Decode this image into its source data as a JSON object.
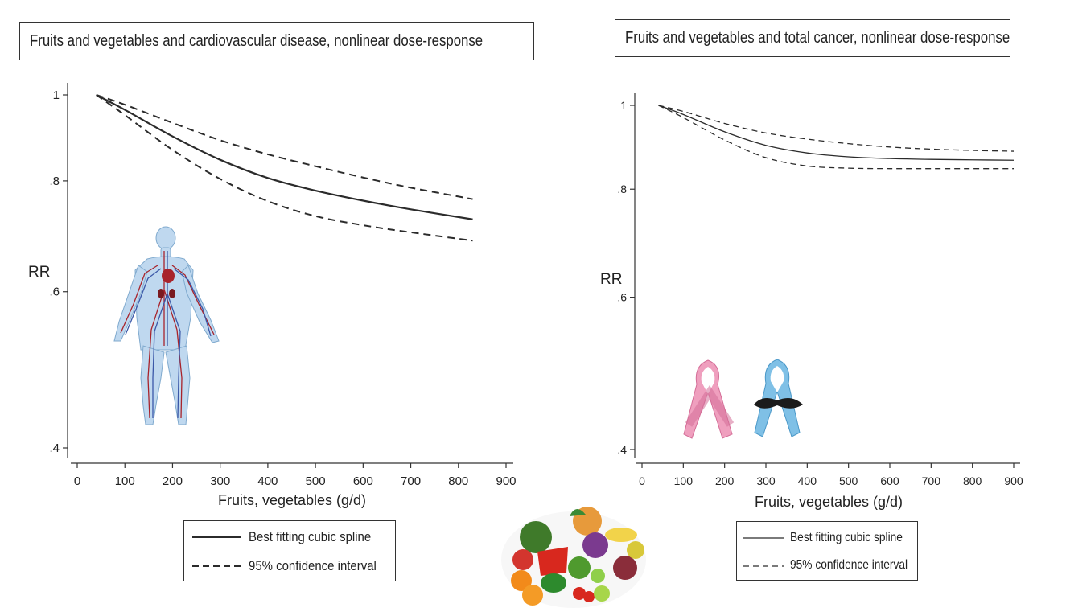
{
  "chart_data": [
    {
      "type": "line",
      "title": "Fruits and vegetables and cardiovascular disease, nonlinear dose-response",
      "xlabel": "Fruits, vegetables (g/d)",
      "ylabel": "RR",
      "xlim": [
        0,
        900
      ],
      "ylim": [
        0.4,
        1.0
      ],
      "y_scale": "log",
      "xticks": [
        "0",
        "100",
        "200",
        "300",
        "400",
        "500",
        "600",
        "700",
        "800",
        "900"
      ],
      "yticks": [
        "1",
        ".8",
        ".6",
        ".4"
      ],
      "grid": false,
      "legend_position": "bottom",
      "x": [
        40,
        100,
        200,
        300,
        400,
        500,
        600,
        700,
        830
      ],
      "series": [
        {
          "name": "Best fitting cubic spline",
          "style": "solid",
          "values": [
            1.0,
            0.962,
            0.898,
            0.845,
            0.806,
            0.78,
            0.76,
            0.743,
            0.724
          ]
        },
        {
          "name": "95% confidence interval",
          "style": "dashed",
          "values": [
            1.0,
            0.975,
            0.93,
            0.889,
            0.857,
            0.831,
            0.807,
            0.786,
            0.763
          ]
        },
        {
          "name": "95% confidence interval",
          "style": "dashed",
          "values": [
            1.0,
            0.949,
            0.867,
            0.804,
            0.759,
            0.73,
            0.713,
            0.7,
            0.685
          ]
        }
      ]
    },
    {
      "type": "line",
      "title": "Fruits and vegetables and total cancer, nonlinear dose-response",
      "xlabel": "Fruits, vegetables (g/d)",
      "ylabel": "RR",
      "xlim": [
        0,
        900
      ],
      "ylim": [
        0.4,
        1.0
      ],
      "y_scale": "log",
      "xticks": [
        "0",
        "100",
        "200",
        "300",
        "400",
        "500",
        "600",
        "700",
        "800",
        "900"
      ],
      "yticks": [
        "1",
        ".8",
        ".6",
        ".4"
      ],
      "grid": false,
      "legend_position": "bottom",
      "x": [
        40,
        100,
        200,
        300,
        400,
        500,
        600,
        700,
        800,
        900
      ],
      "series": [
        {
          "name": "Best fitting cubic spline",
          "style": "solid",
          "values": [
            1.0,
            0.976,
            0.932,
            0.899,
            0.881,
            0.872,
            0.868,
            0.866,
            0.865,
            0.864
          ]
        },
        {
          "name": "95% confidence interval",
          "style": "dashed",
          "values": [
            1.0,
            0.984,
            0.953,
            0.929,
            0.914,
            0.903,
            0.895,
            0.89,
            0.887,
            0.885
          ]
        },
        {
          "name": "95% confidence interval",
          "style": "dashed",
          "values": [
            1.0,
            0.968,
            0.912,
            0.87,
            0.851,
            0.846,
            0.845,
            0.845,
            0.845,
            0.845
          ]
        }
      ]
    }
  ],
  "legends": [
    {
      "solid_label": "Best fitting cubic spline",
      "dashed_label": "95% confidence interval"
    },
    {
      "solid_label": "Best fitting cubic spline",
      "dashed_label": "95% confidence interval"
    }
  ],
  "colors": {
    "line": "#2b2b2b",
    "body_fill": "#bcd6ef",
    "vessel_red": "#a8232b",
    "vessel_blue": "#3b58a8",
    "ribbon_pink": "#ef9fbe",
    "ribbon_blue": "#7fc0e6",
    "mustache": "#1b1b1b"
  },
  "icons": [
    "human-circulatory-system-icon",
    "pink-ribbon-icon",
    "blue-ribbon-mustache-icon",
    "fruits-vegetables-icon"
  ]
}
